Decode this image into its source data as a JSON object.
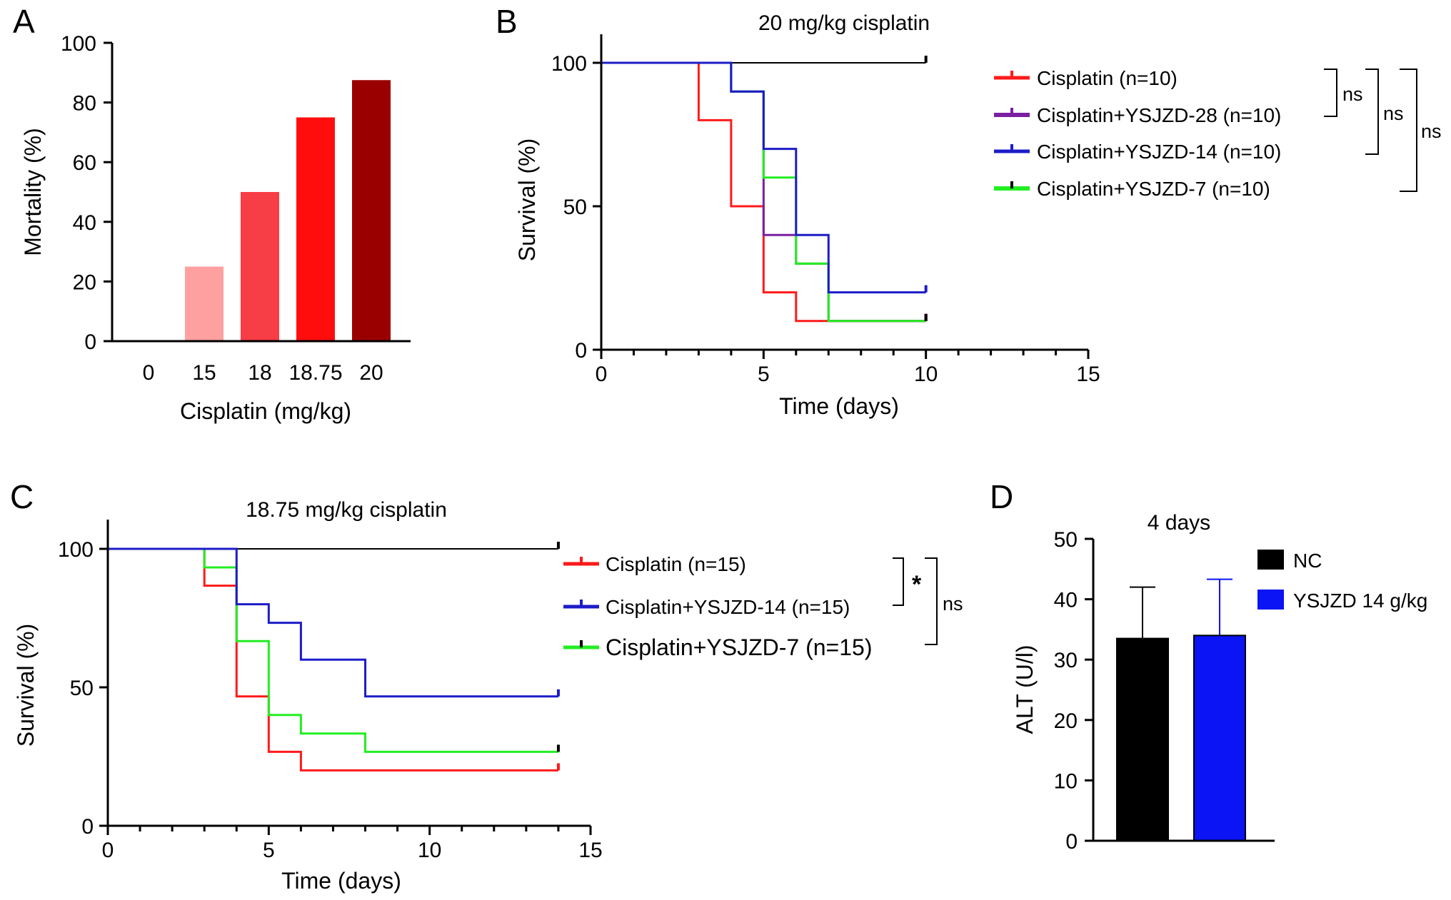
{
  "colors": {
    "red": "#ff1a1a",
    "purple": "#7a1fa2",
    "blue": "#1c1cc8",
    "green": "#22ee22",
    "black": "#000000",
    "nc_bar": "#000000",
    "ysjzd_bar": "#0a14f5"
  },
  "chart_data": [
    {
      "panel": "A",
      "type": "bar",
      "categories": [
        "0",
        "15",
        "18",
        "18.75",
        "20"
      ],
      "values": [
        0,
        25,
        50,
        75,
        87.5
      ],
      "bar_colors": [
        "#ffffff",
        "#ffa0a0",
        "#f73d45",
        "#ff0d0d",
        "#9a0000"
      ],
      "xlabel": "Cisplatin (mg/kg)",
      "ylabel": "Mortality (%)",
      "ylim": [
        0,
        100
      ],
      "yticks": [
        "0",
        "20",
        "40",
        "60",
        "80",
        "100"
      ]
    },
    {
      "panel": "B",
      "type": "line",
      "title": "20 mg/kg cisplatin",
      "xlabel": "Time (days)",
      "ylabel": "Survival (%)",
      "xlim": [
        0,
        15
      ],
      "ylim": [
        0,
        100
      ],
      "xticks": [
        "0",
        "5",
        "10",
        "15"
      ],
      "yticks": [
        "0",
        "50",
        "100"
      ],
      "series": [
        {
          "key": "control",
          "color": "#000000",
          "width": 2,
          "x": [
            0,
            10
          ],
          "y": [
            100,
            100
          ]
        },
        {
          "key": "red",
          "name": "Cisplatin (n=10)",
          "color": "#ff1a1a",
          "width": 3,
          "x": [
            0,
            3,
            4,
            5,
            6,
            10
          ],
          "y": [
            100,
            80,
            50,
            20,
            10,
            10
          ]
        },
        {
          "key": "purple",
          "name": "Cisplatin+YSJZD-28 (n=10)",
          "color": "#7a1fa2",
          "width": 3,
          "x": [
            0,
            4,
            5,
            6,
            7,
            10
          ],
          "y": [
            100,
            90,
            40,
            30,
            10,
            10
          ]
        },
        {
          "key": "green",
          "name": "Cisplatin+YSJZD-7 (n=10)",
          "color": "#22ee22",
          "width": 3,
          "x": [
            0,
            4,
            5,
            6,
            7,
            10
          ],
          "y": [
            100,
            90,
            60,
            30,
            10,
            10
          ]
        },
        {
          "key": "blue",
          "name": "Cisplatin+YSJZD-14 (n=10)",
          "color": "#1c1cc8",
          "width": 3,
          "x": [
            0,
            4,
            5,
            6,
            7,
            10
          ],
          "y": [
            100,
            90,
            70,
            40,
            20,
            20
          ]
        }
      ],
      "legend_order": [
        "red",
        "purple",
        "blue",
        "green"
      ],
      "significance": [
        "ns",
        "ns",
        "ns"
      ]
    },
    {
      "panel": "C",
      "type": "line",
      "title": "18.75 mg/kg cisplatin",
      "xlabel": "Time (days)",
      "ylabel": "Survival (%)",
      "xlim": [
        0,
        15
      ],
      "ylim": [
        0,
        100
      ],
      "xticks": [
        "0",
        "5",
        "10",
        "15"
      ],
      "yticks": [
        "0",
        "50",
        "100"
      ],
      "series": [
        {
          "key": "control",
          "color": "#000000",
          "width": 2,
          "x": [
            0,
            14
          ],
          "y": [
            100,
            100
          ]
        },
        {
          "key": "red",
          "name": "Cisplatin (n=15)",
          "color": "#ff1a1a",
          "width": 3,
          "x": [
            0,
            3,
            4,
            5,
            6,
            14
          ],
          "y": [
            100,
            86.7,
            46.7,
            26.7,
            20,
            20
          ]
        },
        {
          "key": "green",
          "name": "Cisplatin+YSJZD-7 (n=15)",
          "color": "#22ee22",
          "width": 3,
          "x": [
            0,
            3,
            4,
            5,
            6,
            8,
            14
          ],
          "y": [
            100,
            93.3,
            66.7,
            40,
            33.3,
            26.7,
            26.7
          ]
        },
        {
          "key": "blue",
          "name": "Cisplatin+YSJZD-14 (n=15)",
          "color": "#1c1cc8",
          "width": 3,
          "x": [
            0,
            4,
            5,
            6,
            8,
            14
          ],
          "y": [
            100,
            80,
            73.3,
            60,
            46.7,
            46.7
          ]
        }
      ],
      "legend_order": [
        "red",
        "blue",
        "green"
      ],
      "significance": [
        "*",
        "ns"
      ]
    },
    {
      "panel": "D",
      "type": "bar",
      "title": "4 days",
      "ylabel": "ALT (U/l)",
      "ylim": [
        0,
        50
      ],
      "yticks": [
        "0",
        "10",
        "20",
        "30",
        "40",
        "50"
      ],
      "series": [
        {
          "name": "NC",
          "value": 33.5,
          "error": 8.5,
          "color": "#000000"
        },
        {
          "name": "YSJZD 14 g/kg",
          "value": 34,
          "error": 9.3,
          "color": "#0a14f5"
        }
      ]
    }
  ],
  "panel_labels": [
    "A",
    "B",
    "C",
    "D"
  ]
}
